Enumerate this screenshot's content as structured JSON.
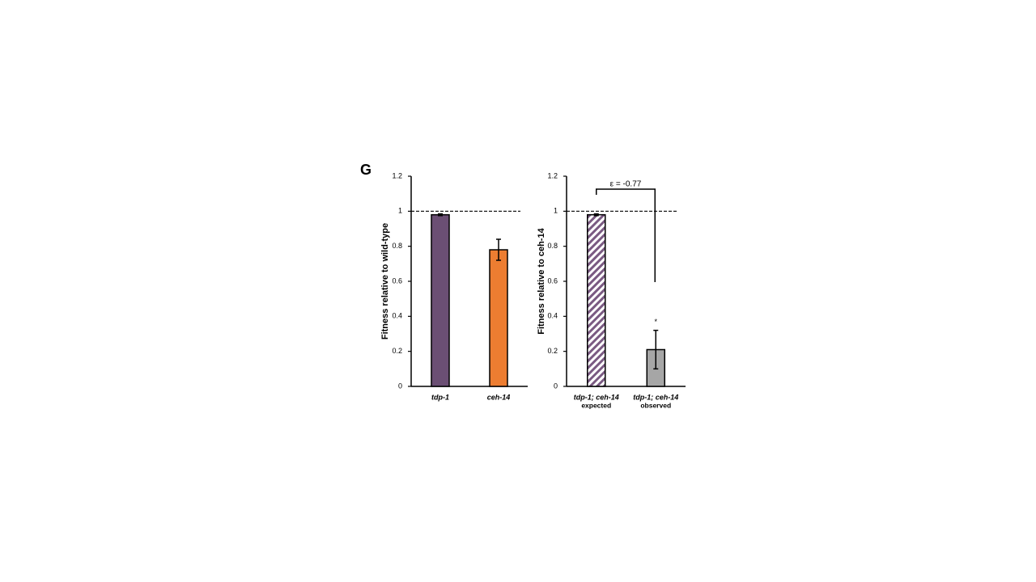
{
  "panel_label": "G",
  "chart_data": [
    {
      "type": "bar",
      "ylabel": "Fitness relative to wild-type",
      "categories": [
        "tdp-1",
        "ceh-14"
      ],
      "values": [
        0.98,
        0.78
      ],
      "errors": [
        0.005,
        0.06
      ],
      "colors": [
        "#6b4f74",
        "#ed7d31"
      ],
      "hatch": [
        false,
        false
      ],
      "ylim": [
        0,
        1.2
      ],
      "yticks": [
        0,
        0.2,
        0.4,
        0.6,
        0.8,
        1,
        1.2
      ],
      "reference_line": 1
    },
    {
      "type": "bar",
      "ylabel": "Fitness relative to ceh-14",
      "categories": [
        "tdp-1; ceh-14",
        "tdp-1; ceh-14"
      ],
      "category_notes": [
        "expected",
        "observed"
      ],
      "values": [
        0.98,
        0.21
      ],
      "errors": [
        0.005,
        0.11
      ],
      "colors": [
        "#7a5a82",
        "#a6a6a6"
      ],
      "hatch": [
        true,
        false
      ],
      "ylim": [
        0,
        1.2
      ],
      "yticks": [
        0,
        0.2,
        0.4,
        0.6,
        0.8,
        1,
        1.2
      ],
      "reference_line": 1,
      "significance": [
        "",
        "*"
      ],
      "annotation": "ε = -0.77"
    }
  ]
}
